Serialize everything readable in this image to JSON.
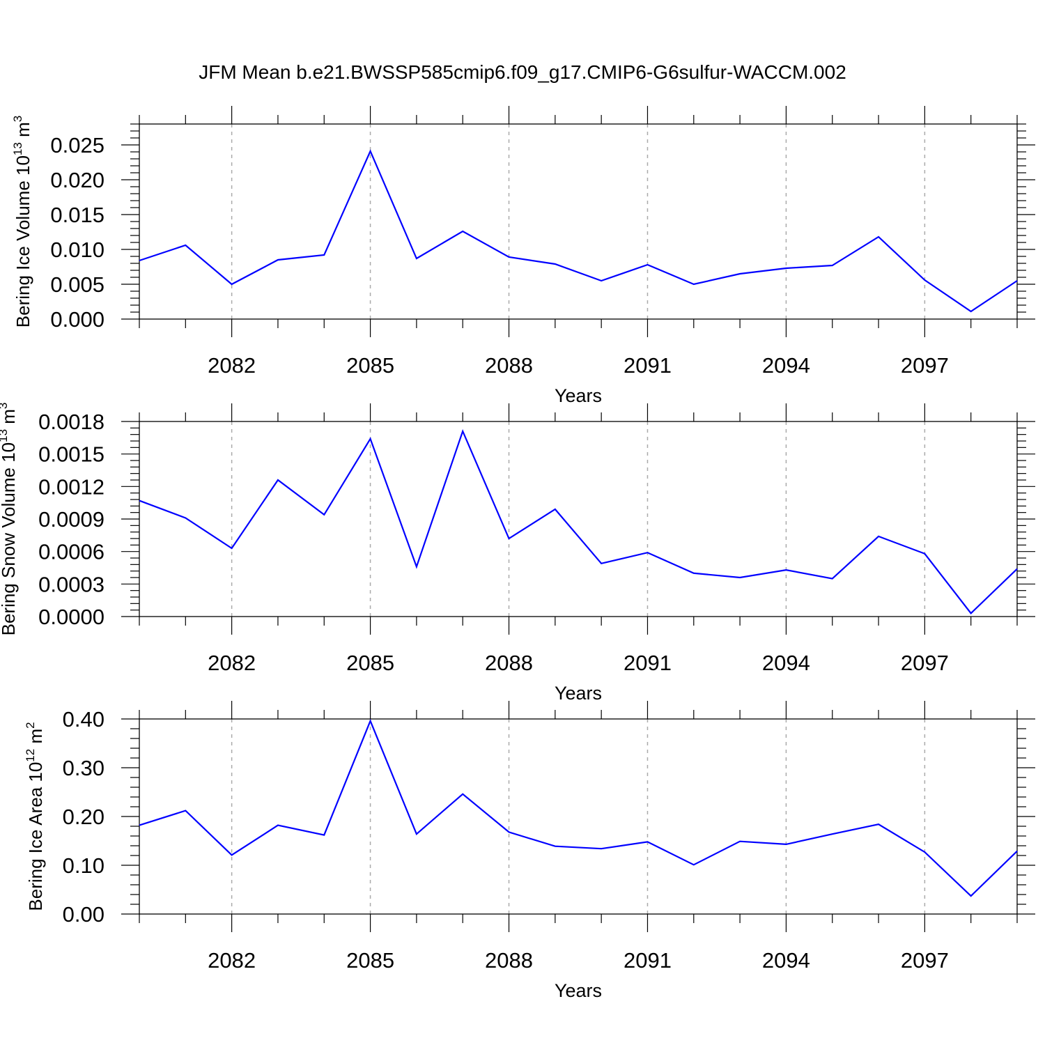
{
  "title": "JFM Mean b.e21.BWSSP585cmip6.f09_g17.CMIP6-G6sulfur-WACCM.002",
  "colors": {
    "line": "#0000ff",
    "axis": "#000000",
    "grid": "#aaaaaa"
  },
  "chart_data": [
    {
      "type": "line",
      "xlabel": "Years",
      "ylabel": {
        "text": "Bering Ice Volume 10",
        "exponent": "13",
        "unit": " m",
        "unit_exponent": "3"
      },
      "x": [
        2080,
        2081,
        2082,
        2083,
        2084,
        2085,
        2086,
        2087,
        2088,
        2089,
        2090,
        2091,
        2092,
        2093,
        2094,
        2095,
        2096,
        2097,
        2098,
        2099
      ],
      "xlim": [
        2080,
        2099
      ],
      "xticks": [
        2082,
        2085,
        2088,
        2091,
        2094,
        2097
      ],
      "xtick_labels": [
        "2082",
        "2085",
        "2088",
        "2091",
        "2094",
        "2097"
      ],
      "ylim": [
        0,
        0.028
      ],
      "yticks": [
        0,
        0.005,
        0.01,
        0.015,
        0.02,
        0.025
      ],
      "ytick_labels": [
        "0.000",
        "0.005",
        "0.010",
        "0.015",
        "0.020",
        "0.025"
      ],
      "series": [
        {
          "values": [
            0.0084,
            0.0106,
            0.005,
            0.0085,
            0.0092,
            0.0241,
            0.0087,
            0.0126,
            0.0089,
            0.0079,
            0.0055,
            0.0078,
            0.005,
            0.0065,
            0.0073,
            0.0077,
            0.0118,
            0.0056,
            0.0011,
            0.0055
          ]
        }
      ]
    },
    {
      "type": "line",
      "xlabel": "Years",
      "ylabel": {
        "text": "Bering Snow Volume 10",
        "exponent": "13",
        "unit": " m",
        "unit_exponent": "3"
      },
      "x": [
        2080,
        2081,
        2082,
        2083,
        2084,
        2085,
        2086,
        2087,
        2088,
        2089,
        2090,
        2091,
        2092,
        2093,
        2094,
        2095,
        2096,
        2097,
        2098,
        2099
      ],
      "xlim": [
        2080,
        2099
      ],
      "xticks": [
        2082,
        2085,
        2088,
        2091,
        2094,
        2097
      ],
      "xtick_labels": [
        "2082",
        "2085",
        "2088",
        "2091",
        "2094",
        "2097"
      ],
      "ylim": [
        0,
        0.0018
      ],
      "yticks": [
        0,
        0.0003,
        0.0006,
        0.0009,
        0.0012,
        0.0015,
        0.0018
      ],
      "ytick_labels": [
        "0.0000",
        "0.0003",
        "0.0006",
        "0.0009",
        "0.0012",
        "0.0015",
        "0.0018"
      ],
      "series": [
        {
          "values": [
            0.00107,
            0.00091,
            0.00063,
            0.00126,
            0.00094,
            0.00164,
            0.00046,
            0.00171,
            0.00072,
            0.00099,
            0.00049,
            0.00059,
            0.0004,
            0.00036,
            0.00043,
            0.00035,
            0.00074,
            0.00058,
            3e-05,
            0.00044
          ]
        }
      ]
    },
    {
      "type": "line",
      "xlabel": "Years",
      "ylabel": {
        "text": "Bering Ice Area 10",
        "exponent": "12",
        "unit": " m",
        "unit_exponent": "2"
      },
      "x": [
        2080,
        2081,
        2082,
        2083,
        2084,
        2085,
        2086,
        2087,
        2088,
        2089,
        2090,
        2091,
        2092,
        2093,
        2094,
        2095,
        2096,
        2097,
        2098,
        2099
      ],
      "xlim": [
        2080,
        2099
      ],
      "xticks": [
        2082,
        2085,
        2088,
        2091,
        2094,
        2097
      ],
      "xtick_labels": [
        "2082",
        "2085",
        "2088",
        "2091",
        "2094",
        "2097"
      ],
      "ylim": [
        0,
        0.4
      ],
      "yticks": [
        0,
        0.1,
        0.2,
        0.3,
        0.4
      ],
      "ytick_labels": [
        "0.00",
        "0.10",
        "0.20",
        "0.30",
        "0.40"
      ],
      "series": [
        {
          "values": [
            0.182,
            0.212,
            0.121,
            0.182,
            0.162,
            0.396,
            0.164,
            0.246,
            0.168,
            0.139,
            0.134,
            0.148,
            0.101,
            0.149,
            0.143,
            0.164,
            0.184,
            0.127,
            0.037,
            0.129
          ]
        }
      ]
    }
  ]
}
